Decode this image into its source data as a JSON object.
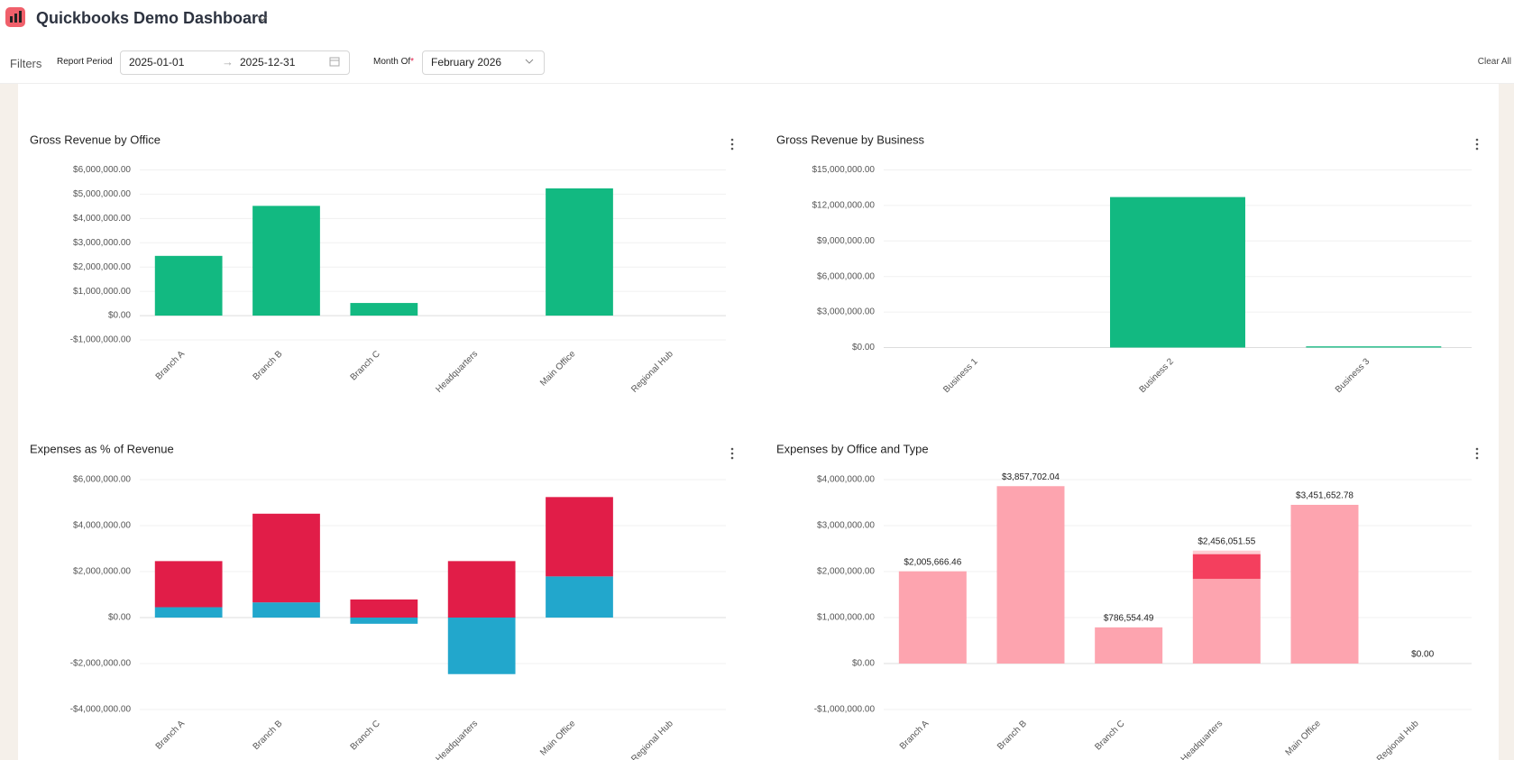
{
  "header": {
    "title": "Quickbooks Demo Dashboard"
  },
  "filters": {
    "label": "Filters",
    "report_period": {
      "label": "Report Period",
      "start": "2025-01-01",
      "end": "2025-12-31"
    },
    "month_of": {
      "label": "Month Of",
      "required_marker": "*",
      "value": "February 2026"
    },
    "clear": "Clear All"
  },
  "chart_data": [
    {
      "type": "bar",
      "title": "Gross Revenue by Office",
      "categories": [
        "Branch A",
        "Branch B",
        "Branch C",
        "Headquarters",
        "Main Office",
        "Regional Hub"
      ],
      "values": [
        2460000,
        4520000,
        520000,
        0,
        5240000,
        0
      ],
      "color": "#12b981",
      "ylim": [
        -1000000,
        6000000
      ],
      "yticks": [
        {
          "value": -1000000,
          "label": "-$1,000,000.00"
        },
        {
          "value": 0,
          "label": "$0.00"
        },
        {
          "value": 1000000,
          "label": "$1,000,000.00"
        },
        {
          "value": 2000000,
          "label": "$2,000,000.00"
        },
        {
          "value": 3000000,
          "label": "$3,000,000.00"
        },
        {
          "value": 4000000,
          "label": "$4,000,000.00"
        },
        {
          "value": 5000000,
          "label": "$5,000,000.00"
        },
        {
          "value": 6000000,
          "label": "$6,000,000.00"
        }
      ],
      "grid": true
    },
    {
      "type": "bar",
      "title": "Gross Revenue by Business",
      "categories": [
        "Business 1",
        "Business 2",
        "Business 3"
      ],
      "values": [
        0,
        12710000,
        100000
      ],
      "color": "#12b981",
      "ylim": [
        0,
        15000000
      ],
      "yticks": [
        {
          "value": 0,
          "label": "$0.00"
        },
        {
          "value": 3000000,
          "label": "$3,000,000.00"
        },
        {
          "value": 6000000,
          "label": "$6,000,000.00"
        },
        {
          "value": 9000000,
          "label": "$9,000,000.00"
        },
        {
          "value": 12000000,
          "label": "$12,000,000.00"
        },
        {
          "value": 15000000,
          "label": "$15,000,000.00"
        }
      ],
      "grid": true
    },
    {
      "type": "stacked_bar",
      "title": "Expenses as % of Revenue",
      "categories": [
        "Branch A",
        "Branch B",
        "Branch C",
        "Headquarters",
        "Main Office",
        "Regional Hub"
      ],
      "series": [
        {
          "color": "#22a7cc",
          "values": [
            450000,
            660000,
            -270000,
            -2460000,
            1790000,
            0
          ]
        },
        {
          "color": "#e11d48",
          "values": [
            2005666,
            3857702,
            786554,
            2456052,
            3451653,
            0
          ]
        }
      ],
      "ylim": [
        -4000000,
        6000000
      ],
      "yticks": [
        {
          "value": -4000000,
          "label": "-$4,000,000.00"
        },
        {
          "value": -2000000,
          "label": "-$2,000,000.00"
        },
        {
          "value": 0,
          "label": "$0.00"
        },
        {
          "value": 2000000,
          "label": "$2,000,000.00"
        },
        {
          "value": 4000000,
          "label": "$4,000,000.00"
        },
        {
          "value": 6000000,
          "label": "$6,000,000.00"
        }
      ],
      "grid": true
    },
    {
      "type": "stacked_bar",
      "title": "Expenses by Office and Type",
      "categories": [
        "Branch A",
        "Branch B",
        "Branch C",
        "Headquarters",
        "Main Office",
        "Regional Hub"
      ],
      "series": [
        {
          "color": "#fda4af",
          "values": [
            2005666.46,
            3857702.04,
            786554.49,
            1840000,
            3451652.78,
            0
          ]
        },
        {
          "color": "#f43f5e",
          "values": [
            0,
            0,
            0,
            540000,
            0,
            0
          ]
        },
        {
          "color": "#fecdd3",
          "values": [
            0,
            0,
            0,
            76051.55,
            0,
            0
          ]
        }
      ],
      "totals": [
        2005666.46,
        3857702.04,
        786554.49,
        2456051.55,
        3451652.78,
        0
      ],
      "total_labels": [
        "$2,005,666.46",
        "$3,857,702.04",
        "$786,554.49",
        "$2,456,051.55",
        "$3,451,652.78",
        "$0.00"
      ],
      "ylim": [
        -1000000,
        4000000
      ],
      "yticks": [
        {
          "value": -1000000,
          "label": "-$1,000,000.00"
        },
        {
          "value": 0,
          "label": "$0.00"
        },
        {
          "value": 1000000,
          "label": "$1,000,000.00"
        },
        {
          "value": 2000000,
          "label": "$2,000,000.00"
        },
        {
          "value": 3000000,
          "label": "$3,000,000.00"
        },
        {
          "value": 4000000,
          "label": "$4,000,000.00"
        }
      ],
      "grid": true
    }
  ]
}
